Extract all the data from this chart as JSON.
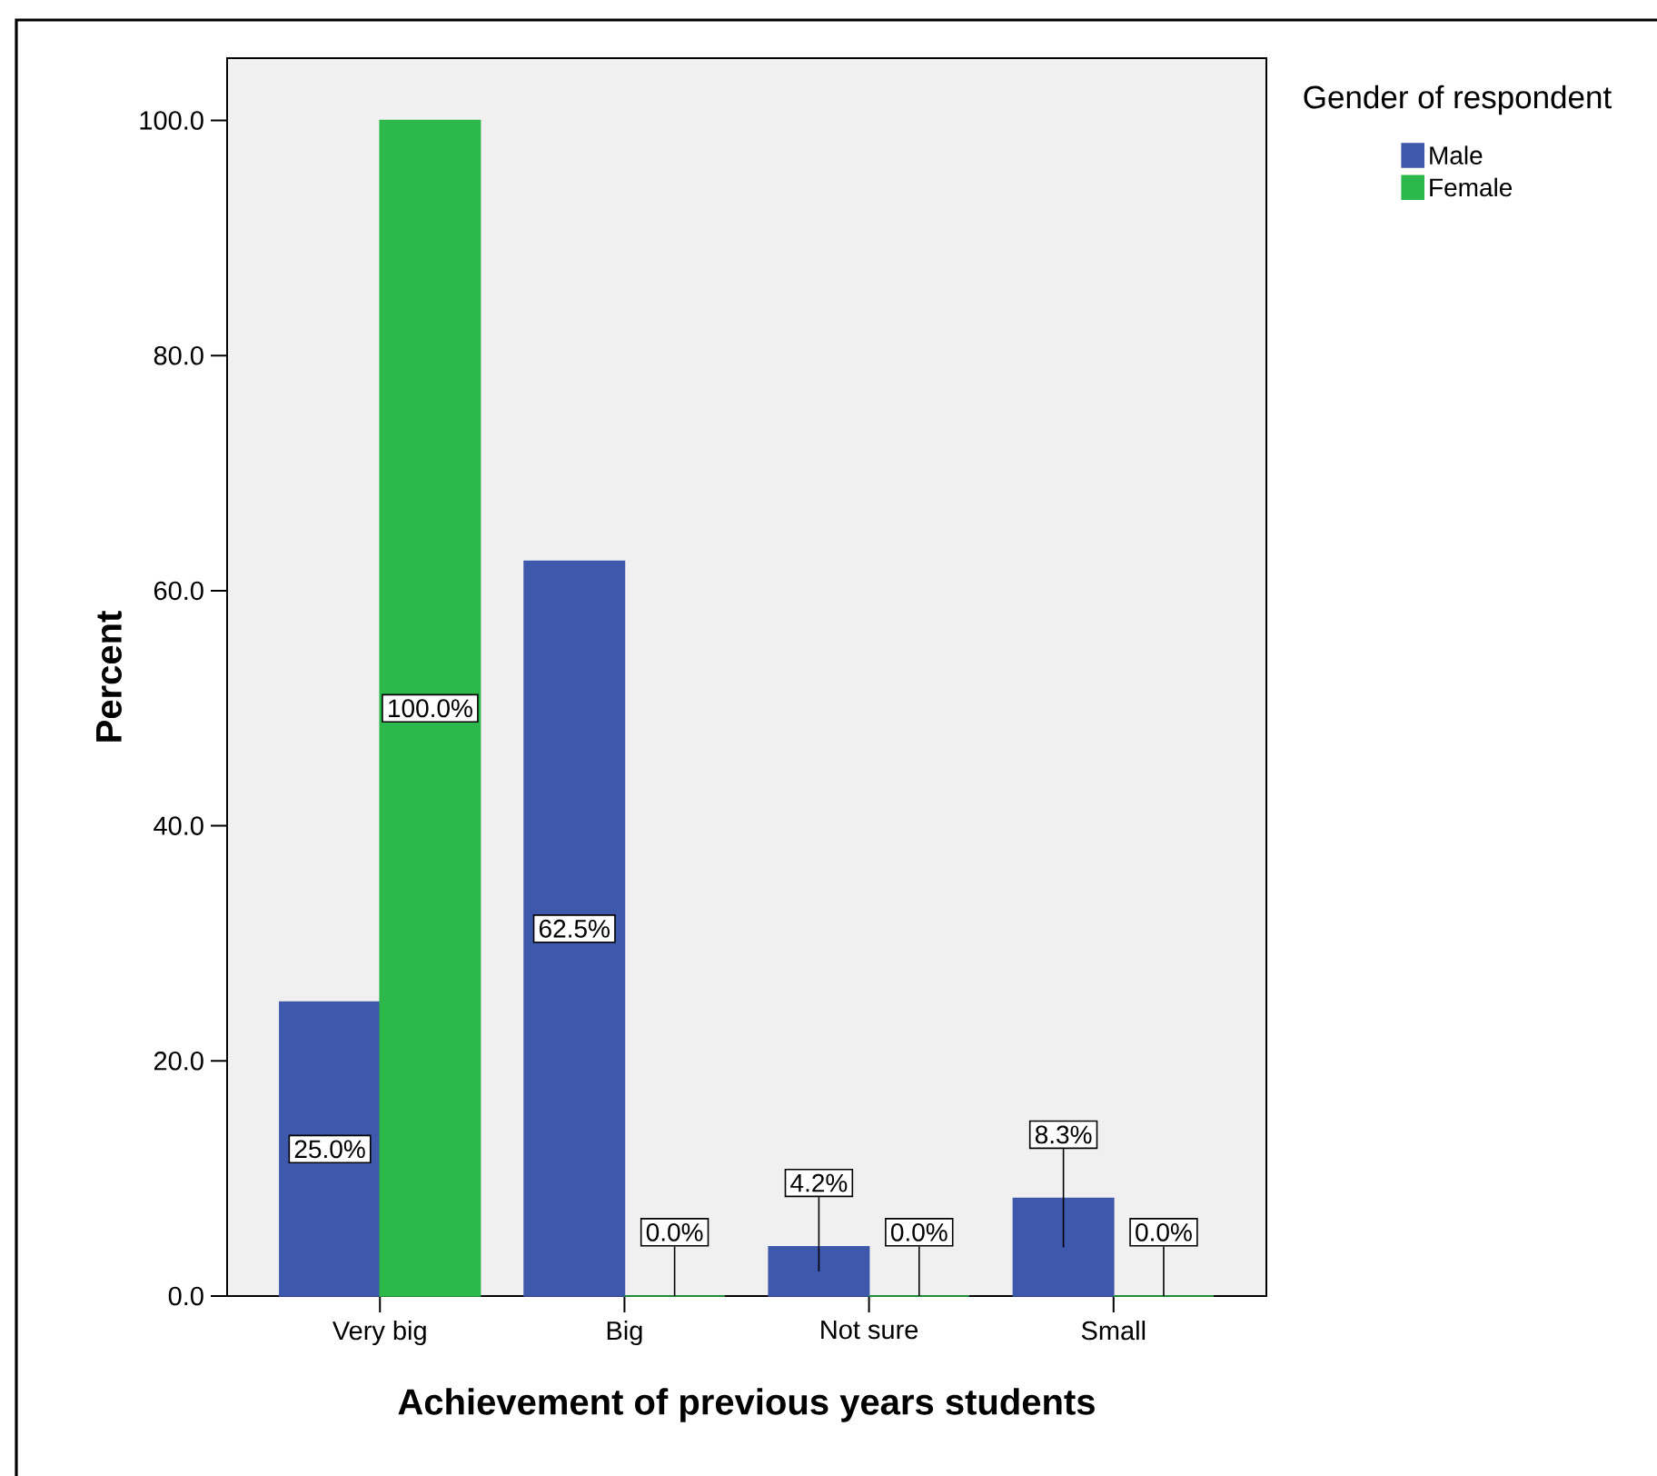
{
  "chart_data": {
    "type": "bar",
    "xlabel": "Achievement of previous years students",
    "ylabel": "Percent",
    "legend_title": "Gender of respondent",
    "categories": [
      "Very big",
      "Big",
      "Not sure",
      "Small"
    ],
    "series": [
      {
        "name": "Male",
        "color": "#3e58ac",
        "values": [
          25.0,
          62.5,
          4.2,
          8.3
        ],
        "value_labels": [
          "25.0%",
          "62.5%",
          "4.2%",
          "8.3%"
        ]
      },
      {
        "name": "Female",
        "color": "#2db84b",
        "values": [
          100.0,
          0.0,
          0.0,
          0.0
        ],
        "value_labels": [
          "100.0%",
          "0.0%",
          "0.0%",
          "0.0%"
        ]
      }
    ],
    "ylim": [
      0,
      105.3
    ],
    "yticks": [
      {
        "value": 0,
        "label": "0.0"
      },
      {
        "value": 20,
        "label": "20.0"
      },
      {
        "value": 40,
        "label": "40.0"
      },
      {
        "value": 60,
        "label": "60.0"
      },
      {
        "value": 80,
        "label": "80.0"
      },
      {
        "value": 100,
        "label": "100.0"
      }
    ],
    "legend": "top right"
  }
}
